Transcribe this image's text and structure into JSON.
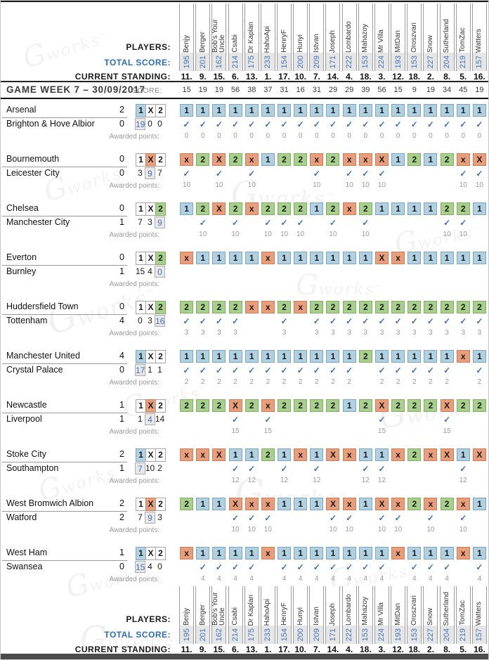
{
  "watermark": {
    "text": "works",
    "tm": "™",
    "glyph": "G"
  },
  "icons": {
    "check": "✓"
  },
  "outcome_labels": [
    "1",
    "X",
    "2"
  ],
  "header": {
    "players_label": "PLAYERS:",
    "total_score_label": "TOTAL SCORE:",
    "current_standing_label": "CURRENT STANDING:",
    "players": [
      "Benjy",
      "Berger",
      "Bob's Your Uncle",
      "Csabi",
      "Dr Kaplan",
      "HahoApi",
      "HenryF",
      "Hunyi",
      "Istvan",
      "Joseph",
      "Lombardo",
      "Mahazoy",
      "Mr Villa",
      "MitDan",
      "Oroszvari",
      "Snow",
      "Sutherland",
      "TomZac",
      "Watters"
    ],
    "total_scores": [
      "195",
      "201",
      "162",
      "214",
      "175",
      "233",
      "154",
      "200",
      "209",
      "171",
      "222",
      "153",
      "224",
      "193",
      "153",
      "227",
      "204",
      "219",
      "157"
    ],
    "current_standings": [
      "11.",
      "9.",
      "15.",
      "6.",
      "13.",
      "1.",
      "17.",
      "10.",
      "7.",
      "14.",
      "4.",
      "18.",
      "3.",
      "12.",
      "18.",
      "2.",
      "8.",
      "5.",
      "16."
    ]
  },
  "gameweek": {
    "title": "GAME WEEK 7 – 30/09/2017",
    "score_label": "SCORE:",
    "week_scores": [
      "15",
      "19",
      "19",
      "56",
      "38",
      "37",
      "31",
      "16",
      "31",
      "29",
      "29",
      "39",
      "56",
      "15",
      "9",
      "19",
      "34",
      "45",
      "19"
    ]
  },
  "awarded_points_label": "Awarded points:",
  "matches": [
    {
      "home": "Arsenal",
      "home_goals": "2",
      "away": "Brighton & Hove Albior",
      "away_goals": "0",
      "result": "1",
      "counts": [
        "19",
        "0",
        "0"
      ],
      "points": "0",
      "predictions": [
        "1",
        "1",
        "1",
        "1",
        "1",
        "1",
        "1",
        "1",
        "1",
        "1",
        "1",
        "1",
        "1",
        "1",
        "1",
        "1",
        "1",
        "1",
        "1"
      ]
    },
    {
      "home": "Bournemouth",
      "home_goals": "0",
      "away": "Leicester City",
      "away_goals": "0",
      "result": "X",
      "counts": [
        "3",
        "9",
        "7"
      ],
      "points": "10",
      "predictions": [
        "x",
        "2",
        "X",
        "2",
        "x",
        "1",
        "2",
        "2",
        "x",
        "2",
        "x",
        "x",
        "X",
        "1",
        "2",
        "1",
        "2",
        "x",
        "X"
      ]
    },
    {
      "home": "Chelsea",
      "home_goals": "0",
      "away": "Manchester City",
      "away_goals": "1",
      "result": "2",
      "counts": [
        "7",
        "3",
        "9"
      ],
      "points": "10",
      "predictions": [
        "1",
        "2",
        "X",
        "2",
        "x",
        "2",
        "2",
        "2",
        "1",
        "2",
        "x",
        "2",
        "1",
        "1",
        "1",
        "1",
        "2",
        "2",
        "1"
      ]
    },
    {
      "home": "Everton",
      "home_goals": "0",
      "away": "Burnley",
      "away_goals": "1",
      "result": "2",
      "counts": [
        "15",
        "4",
        "0"
      ],
      "points": null,
      "predictions": [
        "x",
        "1",
        "1",
        "1",
        "1",
        "x",
        "1",
        "1",
        "1",
        "1",
        "1",
        "1",
        "X",
        "x",
        "1",
        "1",
        "1",
        "1",
        "1"
      ]
    },
    {
      "home": "Huddersfield Town",
      "home_goals": "0",
      "away": "Tottenham",
      "away_goals": "4",
      "result": "2",
      "counts": [
        "0",
        "3",
        "16"
      ],
      "points": "3",
      "predictions": [
        "2",
        "2",
        "2",
        "2",
        "x",
        "x",
        "2",
        "x",
        "2",
        "2",
        "2",
        "2",
        "2",
        "2",
        "2",
        "2",
        "2",
        "2",
        "2"
      ]
    },
    {
      "home": "Manchester United",
      "home_goals": "4",
      "away": "Crystal Palace",
      "away_goals": "0",
      "result": "1",
      "counts": [
        "17",
        "1",
        "1"
      ],
      "points": "2",
      "predictions": [
        "1",
        "1",
        "1",
        "1",
        "1",
        "1",
        "1",
        "1",
        "1",
        "1",
        "1",
        "2",
        "1",
        "1",
        "1",
        "1",
        "1",
        "x",
        "1"
      ]
    },
    {
      "home": "Newcastle",
      "home_goals": "1",
      "away": "Liverpool",
      "away_goals": "1",
      "result": "X",
      "counts": [
        "1",
        "4",
        "14"
      ],
      "points": "15",
      "predictions": [
        "2",
        "2",
        "2",
        "X",
        "2",
        "x",
        "2",
        "2",
        "2",
        "2",
        "1",
        "2",
        "X",
        "2",
        "2",
        "2",
        "X",
        "2",
        "2"
      ]
    },
    {
      "home": "Stoke City",
      "home_goals": "2",
      "away": "Southampton",
      "away_goals": "1",
      "result": "1",
      "counts": [
        "7",
        "10",
        "2"
      ],
      "points": "12",
      "predictions": [
        "x",
        "x",
        "X",
        "1",
        "1",
        "2",
        "1",
        "x",
        "1",
        "X",
        "x",
        "1",
        "1",
        "x",
        "2",
        "x",
        "X",
        "1",
        "X"
      ]
    },
    {
      "home": "West Bromwich Albion",
      "home_goals": "2",
      "away": "Watford",
      "away_goals": "2",
      "result": "X",
      "counts": [
        "7",
        "9",
        "3"
      ],
      "points": "10",
      "predictions": [
        "2",
        "1",
        "1",
        "X",
        "x",
        "x",
        "1",
        "1",
        "1",
        "X",
        "x",
        "1",
        "X",
        "x",
        "2",
        "x",
        "2",
        "x",
        "1"
      ]
    },
    {
      "home": "West Ham",
      "home_goals": "1",
      "away": "Swansea",
      "away_goals": "0",
      "result": "1",
      "counts": [
        "15",
        "4",
        "0"
      ],
      "points": "4",
      "predictions": [
        "x",
        "1",
        "1",
        "1",
        "1",
        "x",
        "1",
        "1",
        "1",
        "1",
        "1",
        "1",
        "1",
        "x",
        "1",
        "1",
        "1",
        "x",
        "1"
      ]
    }
  ],
  "colors": {
    "home_win": "#afd1e2",
    "draw": "#e89e7a",
    "away_win": "#a8d08d",
    "check_blue": "#3f6eb5",
    "score_blue": "#4273b8",
    "label_blue": "#2f6db3"
  }
}
